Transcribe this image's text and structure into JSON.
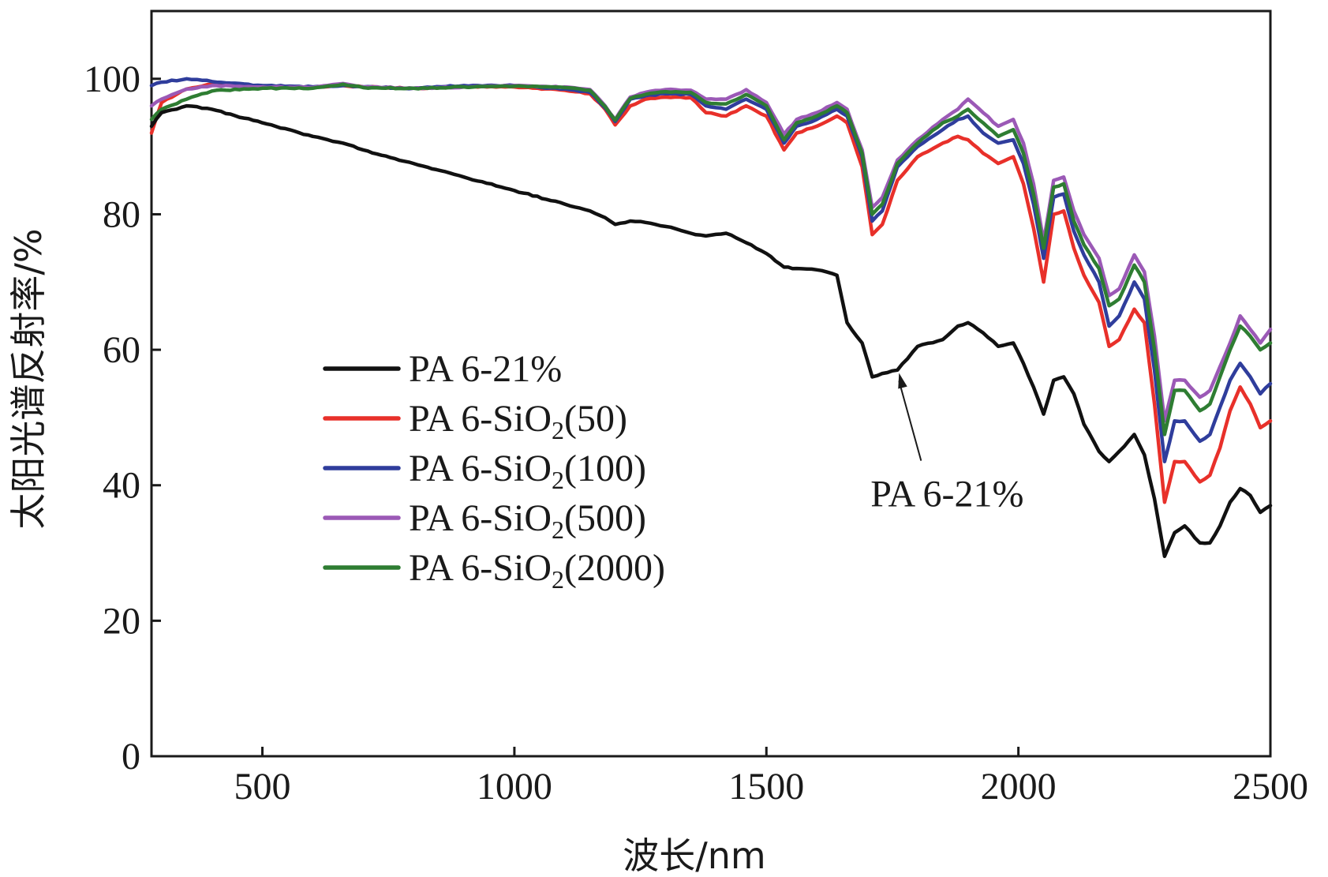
{
  "chart_data": {
    "type": "line",
    "title": "",
    "xlabel": "波长/nm",
    "ylabel": "太阳光谱反射率/%",
    "xlim": [
      280,
      2500
    ],
    "ylim": [
      0,
      110
    ],
    "xticks": [
      {
        "value": 500,
        "label": "500"
      },
      {
        "value": 1000,
        "label": "1000"
      },
      {
        "value": 1500,
        "label": "1500"
      },
      {
        "value": 2000,
        "label": "2000"
      },
      {
        "value": 2500,
        "label": "2500"
      }
    ],
    "yticks": [
      {
        "value": 0,
        "label": "0"
      },
      {
        "value": 20,
        "label": "20"
      },
      {
        "value": 40,
        "label": "40"
      },
      {
        "value": 60,
        "label": "60"
      },
      {
        "value": 80,
        "label": "80"
      },
      {
        "value": 100,
        "label": "100"
      }
    ],
    "legend_position": "center-left",
    "x": [
      280,
      300,
      350,
      400,
      500,
      600,
      660,
      700,
      800,
      900,
      1000,
      1100,
      1150,
      1180,
      1200,
      1230,
      1260,
      1300,
      1350,
      1380,
      1420,
      1460,
      1500,
      1535,
      1560,
      1600,
      1640,
      1660,
      1690,
      1710,
      1730,
      1760,
      1800,
      1850,
      1880,
      1900,
      1930,
      1960,
      1990,
      2010,
      2030,
      2050,
      2070,
      2090,
      2110,
      2130,
      2160,
      2180,
      2200,
      2230,
      2250,
      2270,
      2290,
      2310,
      2330,
      2360,
      2380,
      2400,
      2420,
      2440,
      2460,
      2480,
      2500
    ],
    "series": [
      {
        "name": "PA 6-21%",
        "legend_label": "PA 6-21%",
        "color": "#111111",
        "values": [
          93,
          95,
          96,
          95.5,
          93.5,
          91.5,
          90.5,
          89.5,
          87.5,
          85.5,
          83.5,
          81.5,
          80.5,
          79.5,
          78.5,
          79,
          78.8,
          78.2,
          77.2,
          76.8,
          77.2,
          75.8,
          74.2,
          72.2,
          72,
          71.8,
          71,
          64,
          61,
          56,
          56.5,
          57,
          60.5,
          61.5,
          63.5,
          64,
          62.5,
          60.5,
          61,
          58,
          54.5,
          50.5,
          55.5,
          56,
          53.5,
          49,
          45,
          43.5,
          45,
          47.5,
          44.5,
          38,
          29.5,
          33,
          34,
          31.5,
          31.5,
          34,
          37.5,
          39.5,
          38.5,
          36,
          37
        ]
      },
      {
        "name": "PA 6-SiO2(50)",
        "legend_main": "PA 6-SiO",
        "legend_sub": "2",
        "legend_tail": "(50)",
        "color": "#e8302a",
        "values": [
          92,
          96.5,
          98.5,
          99.2,
          98.8,
          98.7,
          99,
          98.8,
          98.6,
          98.8,
          98.8,
          98.3,
          97.8,
          95.5,
          93.2,
          96,
          97,
          97.3,
          97.2,
          95,
          94.5,
          96,
          94.5,
          89.5,
          92,
          93,
          94.5,
          93.5,
          87,
          77,
          78.5,
          85,
          88.5,
          90.5,
          91.5,
          91,
          89,
          87.5,
          88.5,
          84.5,
          78,
          70,
          80,
          80.5,
          75,
          71,
          67,
          60.5,
          61.5,
          66,
          64,
          52,
          37.5,
          43.5,
          43.5,
          40.5,
          41.5,
          45.5,
          51,
          54.5,
          52,
          48.5,
          49.5
        ]
      },
      {
        "name": "PA 6-SiO2(100)",
        "legend_main": "PA 6-SiO",
        "legend_sub": "2",
        "legend_tail": "(100)",
        "color": "#2f3d9c",
        "values": [
          99,
          99.5,
          100,
          99.6,
          99,
          98.8,
          99,
          98.8,
          98.6,
          99,
          99,
          98.5,
          98,
          95.7,
          93.7,
          97,
          97.5,
          97.8,
          97.7,
          96,
          95.5,
          97,
          95.5,
          90.5,
          93,
          94,
          95.5,
          94.5,
          88.5,
          79,
          80.5,
          87,
          90,
          92.5,
          94,
          94.5,
          92,
          90.5,
          91,
          87.5,
          81.5,
          73.5,
          82.5,
          83,
          77.5,
          74,
          70,
          63.5,
          65,
          70,
          67.5,
          57,
          43.5,
          49.5,
          49.5,
          46.5,
          47.5,
          51.5,
          55.5,
          58,
          56,
          53.5,
          55
        ]
      },
      {
        "name": "PA 6-SiO2(500)",
        "legend_main": "PA 6-SiO",
        "legend_sub": "2",
        "legend_tail": "(500)",
        "color": "#9b59b6",
        "values": [
          96,
          97,
          98.5,
          99,
          98.8,
          98.7,
          99.3,
          98.8,
          98.6,
          98.8,
          99,
          98.8,
          98.4,
          96,
          94,
          97.3,
          98,
          98.4,
          98.3,
          97,
          97,
          98.4,
          96.5,
          91.8,
          94,
          95,
          96.5,
          95.5,
          89.5,
          81,
          82.5,
          88,
          91,
          94,
          95.5,
          97,
          95,
          93,
          94,
          90.5,
          84.5,
          76,
          85,
          85.5,
          80.5,
          77,
          73.5,
          68,
          69,
          74,
          71.5,
          62,
          49.5,
          55.5,
          55.5,
          53,
          54,
          57.5,
          61,
          65,
          63,
          61,
          63
        ]
      },
      {
        "name": "PA 6-SiO2(2000)",
        "legend_main": "PA 6-SiO",
        "legend_sub": "2",
        "legend_tail": "(2000)",
        "color": "#2e7d32",
        "values": [
          94,
          95.5,
          97,
          98.2,
          98.6,
          98.6,
          99.2,
          98.7,
          98.6,
          98.8,
          98.9,
          98.7,
          98.3,
          95.9,
          93.9,
          97.1,
          97.7,
          98.1,
          98,
          96.5,
          96.3,
          97.7,
          96,
          91,
          93.5,
          94.5,
          96,
          95,
          89,
          80,
          81.5,
          87.5,
          90.5,
          93.5,
          94.5,
          95.5,
          93.5,
          91.5,
          92.5,
          89,
          83,
          75,
          84,
          84.5,
          79,
          75.5,
          72,
          66.5,
          67.5,
          72.5,
          70,
          60,
          47.5,
          54,
          54,
          51,
          52,
          56,
          60,
          63.5,
          62,
          60,
          61
        ]
      }
    ],
    "annotations": [
      {
        "text": "PA 6-21%",
        "target_x": 1760,
        "target_y": 57.5,
        "text_x": 1760,
        "text_y": 38.5
      }
    ]
  }
}
